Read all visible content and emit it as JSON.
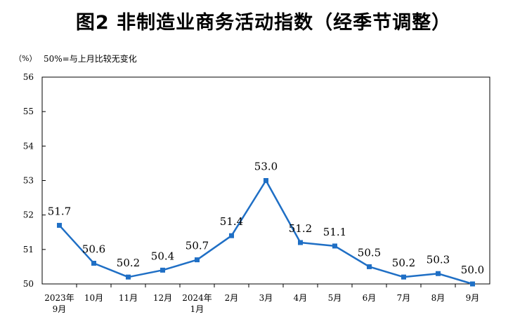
{
  "title": "图2  非制造业商务活动指数（经季节调整）",
  "unit": "（%）",
  "note": "50%=与上月比较无变化",
  "chart_data": {
    "type": "line",
    "categories": [
      [
        "2023年",
        "9月"
      ],
      [
        "10月"
      ],
      [
        "11月"
      ],
      [
        "12月"
      ],
      [
        "2024年",
        "1月"
      ],
      [
        "2月"
      ],
      [
        "3月"
      ],
      [
        "4月"
      ],
      [
        "5月"
      ],
      [
        "6月"
      ],
      [
        "7月"
      ],
      [
        "8月"
      ],
      [
        "9月"
      ]
    ],
    "values": [
      51.7,
      50.6,
      50.2,
      50.4,
      50.7,
      51.4,
      53.0,
      51.2,
      51.1,
      50.5,
      50.2,
      50.3,
      50.0
    ],
    "data_labels": [
      "51.7",
      "50.6",
      "50.2",
      "50.4",
      "50.7",
      "51.4",
      "53.0",
      "51.2",
      "51.1",
      "50.5",
      "50.2",
      "50.3",
      "50.0"
    ],
    "ylim": [
      50,
      56
    ],
    "yticks": [
      50,
      51,
      52,
      53,
      54,
      55,
      56
    ],
    "series_color": "#1f6fc5",
    "grid": false,
    "marker": "square"
  }
}
